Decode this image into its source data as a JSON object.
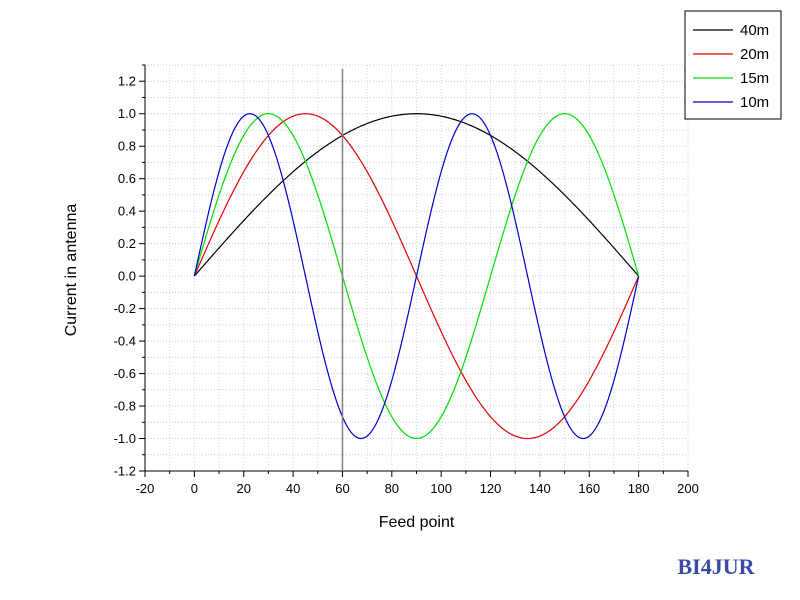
{
  "chart_data": {
    "type": "line",
    "xlabel": "Feed point",
    "ylabel": "Current in antenna",
    "xlim": [
      -20,
      200
    ],
    "ylim": [
      -1.2,
      1.3
    ],
    "x_ticks": [
      -20,
      0,
      20,
      40,
      60,
      80,
      100,
      120,
      140,
      160,
      180,
      200
    ],
    "y_ticks": [
      -1.2,
      -1.0,
      -0.8,
      -0.6,
      -0.4,
      -0.2,
      0.0,
      0.2,
      0.4,
      0.6,
      0.8,
      1.0,
      1.2
    ],
    "grid": true,
    "legend_position": "top-right",
    "x_start": 0,
    "x_end": 180,
    "marker_line_x": 60,
    "series": [
      {
        "name": "40m",
        "color": "#000000",
        "half_waves": 1
      },
      {
        "name": "20m",
        "color": "#e00000",
        "half_waves": 2
      },
      {
        "name": "15m",
        "color": "#00dd00",
        "half_waves": 3
      },
      {
        "name": "10m",
        "color": "#0000cc",
        "half_waves": 4
      }
    ]
  },
  "marker_line_color": "#808080",
  "watermark": "BI4JUR"
}
